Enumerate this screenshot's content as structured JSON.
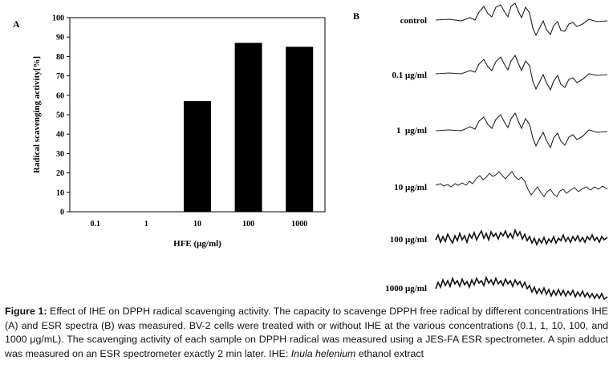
{
  "panel_a_label": "A",
  "panel_b_label": "B",
  "chart_data": [
    {
      "type": "bar",
      "categories": [
        "0.1",
        "1",
        "10",
        "100",
        "1000"
      ],
      "values": [
        0,
        0,
        57,
        87,
        85
      ],
      "xlabel": "HFE (μg/ml)",
      "ylabel": "Radical scavenging activity[%]",
      "ylim": [
        0,
        100
      ],
      "yticks": [
        0,
        10,
        20,
        30,
        40,
        50,
        60,
        70,
        80,
        90,
        100
      ],
      "bar_color": "#000000",
      "grid": false
    }
  ],
  "esr_spectra": {
    "labels": [
      "control",
      "0.1 μg/ml",
      "1  μg/ml",
      "10 μg/ml",
      "100 μg/ml",
      "1000 μg/ml"
    ]
  },
  "caption": {
    "fig_label": "Figure 1:",
    "text1": " Effect of IHE on DPPH radical scavenging activity. The capacity to scavenge DPPH free radical by different concentrations IHE (A) and ESR spectra (B) was measured. BV-2 cells were treated with or without IHE at the various concentrations (0.1, 1, 10, 100, and 1000 μg/mL). The scavenging activity of each sample on DPPH radical was measured using a JES-FA ESR spectrometer. A spin adduct was measured on an ESR spectrometer exactly 2 min later. IHE: ",
    "species": "Inula helenium",
    "text2": " ethanol extract"
  }
}
